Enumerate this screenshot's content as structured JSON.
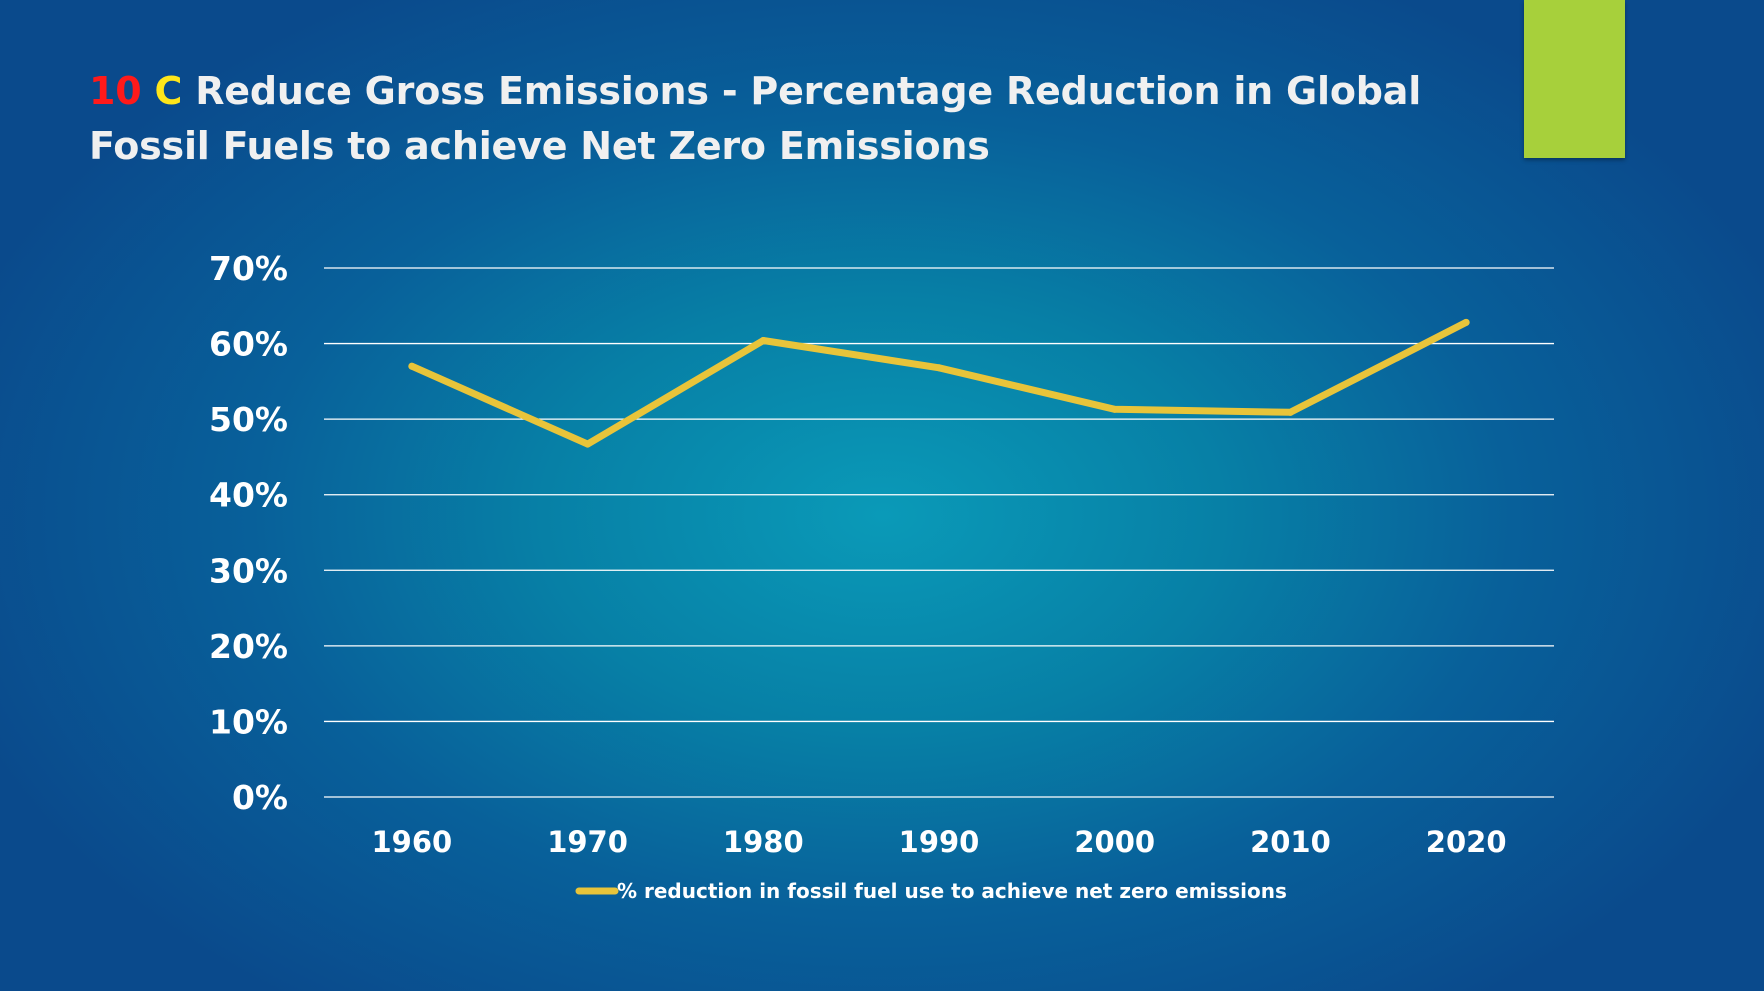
{
  "slide": {
    "title_number": "10",
    "title_letter": "C",
    "title_text": "Reduce Gross Emissions - Percentage Reduction in Global Fossil Fuels to achieve Net Zero Emissions",
    "accent_color": "#a7d03b"
  },
  "chart_data": {
    "type": "line",
    "title": "",
    "xlabel": "",
    "ylabel": "",
    "categories": [
      "1960",
      "1970",
      "1980",
      "1990",
      "2000",
      "2010",
      "2020"
    ],
    "series": [
      {
        "name": "% reduction in fossil fuel use to achieve net zero emissions",
        "values": [
          57,
          46.7,
          60.4,
          56.8,
          51.3,
          50.9,
          62.8
        ],
        "color": "#e8c43a"
      }
    ],
    "ylim": [
      0,
      70
    ],
    "yticks": [
      "0%",
      "10%",
      "20%",
      "30%",
      "40%",
      "50%",
      "60%",
      "70%"
    ],
    "grid": true,
    "legend_position": "bottom"
  }
}
